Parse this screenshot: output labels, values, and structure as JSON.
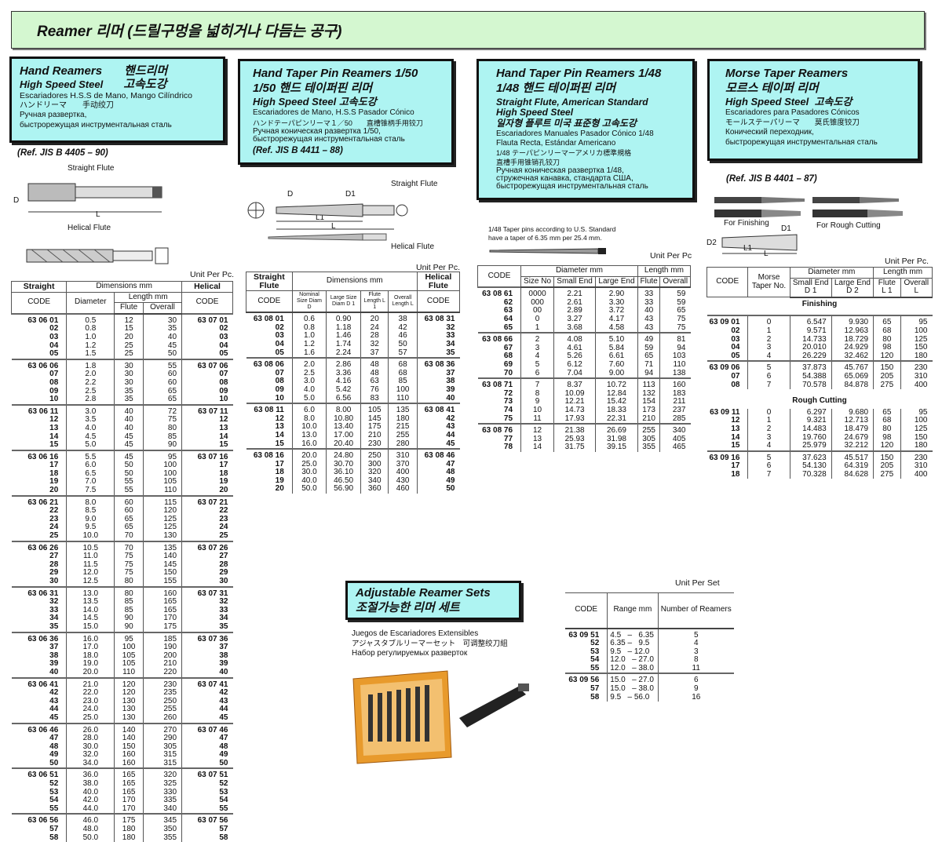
{
  "title": "Reamer  리머 (드릴구멍을 넓히거나 다듬는 공구)",
  "hand": {
    "title_en": "Hand Reamers",
    "title_kr": "핸드리머",
    "steel_en": "High Speed Steel",
    "steel_kr": "고속도강",
    "es": "Escariadores H.S.S de Mano, Mango Cilíndrico",
    "jp": "ハンドリーマ　　手动绞刀",
    "ru1": "Ручная развертка,",
    "ru2": "быстрорежущая инструментальная сталь",
    "ref": "(Ref. JIS B 4405 – 90)",
    "straight": "Straight Flute",
    "helical": "Helical Flute",
    "d": "D",
    "l": "L",
    "unit": "Unit Per Pc.",
    "headers": {
      "straight": "Straight",
      "dims": "Dimensions mm",
      "helical": "Helical",
      "code": "CODE",
      "diameter": "Diameter",
      "length": "Length mm",
      "flute": "Flute",
      "overall": "Overall",
      "code2": "CODE"
    },
    "rows": [
      [
        [
          "63 06 01",
          "0.5",
          "12",
          "30",
          "63 07 01"
        ],
        [
          "02",
          "0.8",
          "15",
          "35",
          "02"
        ],
        [
          "03",
          "1.0",
          "20",
          "40",
          "03"
        ],
        [
          "04",
          "1.2",
          "25",
          "45",
          "04"
        ],
        [
          "05",
          "1.5",
          "25",
          "50",
          "05"
        ]
      ],
      [
        [
          "63 06 06",
          "1.8",
          "30",
          "55",
          "63 07 06"
        ],
        [
          "07",
          "2.0",
          "30",
          "60",
          "07"
        ],
        [
          "08",
          "2.2",
          "30",
          "60",
          "08"
        ],
        [
          "09",
          "2.5",
          "35",
          "65",
          "09"
        ],
        [
          "10",
          "2.8",
          "35",
          "65",
          "10"
        ]
      ],
      [
        [
          "63 06 11",
          "3.0",
          "40",
          "72",
          "63 07 11"
        ],
        [
          "12",
          "3.5",
          "40",
          "75",
          "12"
        ],
        [
          "13",
          "4.0",
          "40",
          "80",
          "13"
        ],
        [
          "14",
          "4.5",
          "45",
          "85",
          "14"
        ],
        [
          "15",
          "5.0",
          "45",
          "90",
          "15"
        ]
      ],
      [
        [
          "63 06 16",
          "5.5",
          "45",
          "95",
          "63 07 16"
        ],
        [
          "17",
          "6.0",
          "50",
          "100",
          "17"
        ],
        [
          "18",
          "6.5",
          "50",
          "100",
          "18"
        ],
        [
          "19",
          "7.0",
          "55",
          "105",
          "19"
        ],
        [
          "20",
          "7.5",
          "55",
          "110",
          "20"
        ]
      ],
      [
        [
          "63 06 21",
          "8.0",
          "60",
          "115",
          "63 07 21"
        ],
        [
          "22",
          "8.5",
          "60",
          "120",
          "22"
        ],
        [
          "23",
          "9.0",
          "65",
          "125",
          "23"
        ],
        [
          "24",
          "9.5",
          "65",
          "125",
          "24"
        ],
        [
          "25",
          "10.0",
          "70",
          "130",
          "25"
        ]
      ],
      [
        [
          "63 06 26",
          "10.5",
          "70",
          "135",
          "63 07 26"
        ],
        [
          "27",
          "11.0",
          "75",
          "140",
          "27"
        ],
        [
          "28",
          "11.5",
          "75",
          "145",
          "28"
        ],
        [
          "29",
          "12.0",
          "75",
          "150",
          "29"
        ],
        [
          "30",
          "12.5",
          "80",
          "155",
          "30"
        ]
      ],
      [
        [
          "63 06 31",
          "13.0",
          "80",
          "160",
          "63 07 31"
        ],
        [
          "32",
          "13.5",
          "85",
          "165",
          "32"
        ],
        [
          "33",
          "14.0",
          "85",
          "165",
          "33"
        ],
        [
          "34",
          "14.5",
          "90",
          "170",
          "34"
        ],
        [
          "35",
          "15.0",
          "90",
          "175",
          "35"
        ]
      ],
      [
        [
          "63 06 36",
          "16.0",
          "95",
          "185",
          "63 07 36"
        ],
        [
          "37",
          "17.0",
          "100",
          "190",
          "37"
        ],
        [
          "38",
          "18.0",
          "105",
          "200",
          "38"
        ],
        [
          "39",
          "19.0",
          "105",
          "210",
          "39"
        ],
        [
          "40",
          "20.0",
          "110",
          "220",
          "40"
        ]
      ],
      [
        [
          "63 06 41",
          "21.0",
          "120",
          "230",
          "63 07 41"
        ],
        [
          "42",
          "22.0",
          "120",
          "235",
          "42"
        ],
        [
          "43",
          "23.0",
          "130",
          "250",
          "43"
        ],
        [
          "44",
          "24.0",
          "130",
          "255",
          "44"
        ],
        [
          "45",
          "25.0",
          "130",
          "260",
          "45"
        ]
      ],
      [
        [
          "63 06 46",
          "26.0",
          "140",
          "270",
          "63 07 46"
        ],
        [
          "47",
          "28.0",
          "140",
          "290",
          "47"
        ],
        [
          "48",
          "30.0",
          "150",
          "305",
          "48"
        ],
        [
          "49",
          "32.0",
          "160",
          "315",
          "49"
        ],
        [
          "50",
          "34.0",
          "160",
          "315",
          "50"
        ]
      ],
      [
        [
          "63 06 51",
          "36.0",
          "165",
          "320",
          "63 07 51"
        ],
        [
          "52",
          "38.0",
          "165",
          "325",
          "52"
        ],
        [
          "53",
          "40.0",
          "165",
          "330",
          "53"
        ],
        [
          "54",
          "42.0",
          "170",
          "335",
          "54"
        ],
        [
          "55",
          "44.0",
          "170",
          "340",
          "55"
        ]
      ],
      [
        [
          "63 06 56",
          "46.0",
          "175",
          "345",
          "63 07 56"
        ],
        [
          "57",
          "48.0",
          "180",
          "350",
          "57"
        ],
        [
          "58",
          "50.0",
          "180",
          "355",
          "58"
        ]
      ]
    ]
  },
  "taper50": {
    "title_en": "Hand Taper Pin Reamers 1/50",
    "title_kr": "1/50 핸드 테이퍼핀 리머",
    "steel_en": "High Speed Steel",
    "steel_kr": "고속도강",
    "es": "Escariadores de Mano, H.S.S Pasador Cónico",
    "jp": "ハンドテーパピンリーマ１／50　　直槽锥柄手用铰刀",
    "ru1": "Ручная коническая развертка 1/50,",
    "ru2": "быстрорежущая инструментальная сталь",
    "ref": "(Ref. JIS B 4411 – 88)",
    "straight": "Straight Flute",
    "helical": "Helical Flute",
    "d": "D",
    "d1": "D1",
    "l1": "L1",
    "l": "L",
    "unit": "Unit Per Pc.",
    "headers": {
      "straight": "Straight Flute",
      "dims": "Dimensions mm",
      "helical": "Helical Flute",
      "code": "CODE",
      "nominal": "Nominal Size Diam D",
      "large": "Large Size Diam D 1",
      "flute": "Flute Length L 1",
      "overall": "Overall Length L",
      "code2": "CODE"
    },
    "rows": [
      [
        [
          "63 08 01",
          "0.6",
          "0.90",
          "20",
          "38",
          "63 08 31"
        ],
        [
          "02",
          "0.8",
          "1.18",
          "24",
          "42",
          "32"
        ],
        [
          "03",
          "1.0",
          "1.46",
          "28",
          "46",
          "33"
        ],
        [
          "04",
          "1.2",
          "1.74",
          "32",
          "50",
          "34"
        ],
        [
          "05",
          "1.6",
          "2.24",
          "37",
          "57",
          "35"
        ]
      ],
      [
        [
          "63 08 06",
          "2.0",
          "2.86",
          "48",
          "68",
          "63 08 36"
        ],
        [
          "07",
          "2.5",
          "3.36",
          "48",
          "68",
          "37"
        ],
        [
          "08",
          "3.0",
          "4.16",
          "63",
          "85",
          "38"
        ],
        [
          "09",
          "4.0",
          "5.42",
          "76",
          "100",
          "39"
        ],
        [
          "10",
          "5.0",
          "6.56",
          "83",
          "110",
          "40"
        ]
      ],
      [
        [
          "63 08 11",
          "6.0",
          "8.00",
          "105",
          "135",
          "63 08 41"
        ],
        [
          "12",
          "8.0",
          "10.80",
          "145",
          "180",
          "42"
        ],
        [
          "13",
          "10.0",
          "13.40",
          "175",
          "215",
          "43"
        ],
        [
          "14",
          "13.0",
          "17.00",
          "210",
          "255",
          "44"
        ],
        [
          "15",
          "16.0",
          "20.40",
          "230",
          "280",
          "45"
        ]
      ],
      [
        [
          "63 08 16",
          "20.0",
          "24.80",
          "250",
          "310",
          "63 08 46"
        ],
        [
          "17",
          "25.0",
          "30.70",
          "300",
          "370",
          "47"
        ],
        [
          "18",
          "30.0",
          "36.10",
          "320",
          "400",
          "48"
        ],
        [
          "19",
          "40.0",
          "46.50",
          "340",
          "430",
          "49"
        ],
        [
          "20",
          "50.0",
          "56.90",
          "360",
          "460",
          "50"
        ]
      ]
    ]
  },
  "taper48": {
    "title_en": "Hand Taper Pin Reamers 1/48",
    "title_kr": "1/48 핸드 테이퍼핀 리머",
    "sub1": "Straight Flute, American Standard",
    "sub2": "High Speed Steel",
    "sub_kr": "일자형 플루트 미국 표준형 고속도강",
    "es1": "Escariadores Manuales Pasador Cónico 1/48",
    "es2": "Flauta Recta, Estándar Americano",
    "jp1": "1/48 テーパピンリーマーアメリカ標準規格",
    "jp2": "直槽手用锥销孔铰刀",
    "ru1": "Ручная коническая развертка 1/48,",
    "ru2": "стружечная канавка, стандарта США,",
    "ru3": "быстрорежущая инструментальная сталь",
    "note1": "1/48 Taper pins according to U.S. Standard",
    "note2": "have a taper of 6.35 mm per 25.4 mm.",
    "unit": "Unit Per Pc",
    "headers": {
      "code": "CODE",
      "diameter": "Diameter mm",
      "length": "Length mm",
      "size": "Size No",
      "small": "Small End",
      "large": "Large End",
      "flute": "Flute",
      "overall": "Overall"
    },
    "rows": [
      [
        [
          "63 08 61",
          "0000",
          "2.21",
          "2.90",
          "33",
          "59"
        ],
        [
          "62",
          "000",
          "2.61",
          "3.30",
          "33",
          "59"
        ],
        [
          "63",
          "00",
          "2.89",
          "3.72",
          "40",
          "65"
        ],
        [
          "64",
          "0",
          "3.27",
          "4.17",
          "43",
          "75"
        ],
        [
          "65",
          "1",
          "3.68",
          "4.58",
          "43",
          "75"
        ]
      ],
      [
        [
          "63 08 66",
          "2",
          "4.08",
          "5.10",
          "49",
          "81"
        ],
        [
          "67",
          "3",
          "4.61",
          "5.84",
          "59",
          "94"
        ],
        [
          "68",
          "4",
          "5.26",
          "6.61",
          "65",
          "103"
        ],
        [
          "69",
          "5",
          "6.12",
          "7.60",
          "71",
          "110"
        ],
        [
          "70",
          "6",
          "7.04",
          "9.00",
          "94",
          "138"
        ]
      ],
      [
        [
          "63 08 71",
          "7",
          "8.37",
          "10.72",
          "113",
          "160"
        ],
        [
          "72",
          "8",
          "10.09",
          "12.84",
          "132",
          "183"
        ],
        [
          "73",
          "9",
          "12.21",
          "15.42",
          "154",
          "211"
        ],
        [
          "74",
          "10",
          "14.73",
          "18.33",
          "173",
          "237"
        ],
        [
          "75",
          "11",
          "17.93",
          "22.31",
          "210",
          "285"
        ]
      ],
      [
        [
          "63 08 76",
          "12",
          "21.38",
          "26.69",
          "255",
          "340"
        ],
        [
          "77",
          "13",
          "25.93",
          "31.98",
          "305",
          "405"
        ],
        [
          "78",
          "14",
          "31.75",
          "39.15",
          "355",
          "465"
        ]
      ]
    ]
  },
  "morse": {
    "title_en": "Morse Taper Reamers",
    "title_kr": "모르스 테이퍼 리머",
    "steel_en": "High Speed Steel",
    "steel_kr": "고속도강",
    "es": "Escariadores para Pasadores Cónicos",
    "jp": "モールステーパリーマ　　莫氏锥度铰刀",
    "ru1": "Конический переходник,",
    "ru2": "быстрорежущая инструментальная сталь",
    "ref": "(Ref. JIS B 4401 – 87)",
    "finishing_lbl": "For Finishing",
    "rough_lbl": "For Rough Cutting",
    "d1": "D1",
    "d2": "D2",
    "l1": "L1",
    "l": "L",
    "unit": "Unit Per Pc.",
    "headers": {
      "code": "CODE",
      "morse": "Morse Taper No.",
      "diameter": "Diameter mm",
      "length": "Length mm",
      "small": "Small End D 1",
      "large": "Large End D 2",
      "flute": "Flute L 1",
      "overall": "Overall L"
    },
    "finishing": "Finishing",
    "rough": "Rough Cutting",
    "finishing_rows": [
      [
        [
          "63 09 01",
          "0",
          "6.547",
          "9.930",
          "65",
          "95"
        ],
        [
          "02",
          "1",
          "9.571",
          "12.963",
          "68",
          "100"
        ],
        [
          "03",
          "2",
          "14.733",
          "18.729",
          "80",
          "125"
        ],
        [
          "04",
          "3",
          "20.010",
          "24.929",
          "98",
          "150"
        ],
        [
          "05",
          "4",
          "26.229",
          "32.462",
          "120",
          "180"
        ]
      ],
      [
        [
          "63 09 06",
          "5",
          "37.873",
          "45.767",
          "150",
          "230"
        ],
        [
          "07",
          "6",
          "54.388",
          "65.069",
          "205",
          "310"
        ],
        [
          "08",
          "7",
          "70.578",
          "84.878",
          "275",
          "400"
        ]
      ]
    ],
    "rough_rows": [
      [
        [
          "63 09 11",
          "0",
          "6.297",
          "9.680",
          "65",
          "95"
        ],
        [
          "12",
          "1",
          "9.321",
          "12.713",
          "68",
          "100"
        ],
        [
          "13",
          "2",
          "14.483",
          "18.479",
          "80",
          "125"
        ],
        [
          "14",
          "3",
          "19.760",
          "24.679",
          "98",
          "150"
        ],
        [
          "15",
          "4",
          "25.979",
          "32.212",
          "120",
          "180"
        ]
      ],
      [
        [
          "63 09 16",
          "5",
          "37.623",
          "45.517",
          "150",
          "230"
        ],
        [
          "17",
          "6",
          "54.130",
          "64.319",
          "205",
          "310"
        ],
        [
          "18",
          "7",
          "70.328",
          "84.628",
          "275",
          "400"
        ]
      ]
    ]
  },
  "adjustable": {
    "title_en": "Adjustable Reamer Sets",
    "title_kr": "조절가능한 리머 세트",
    "es": "Juegos de Escariadores Extensibles",
    "jp": "アジャスタブルリーマーセット　可调整绞刀組",
    "ru": "Набор регулируемых разверток",
    "unit": "Unit Per Set",
    "headers": {
      "code": "CODE",
      "range": "Range mm",
      "number": "Number of Reamers"
    },
    "rows": [
      [
        [
          "63 09 51",
          "4.5   –   6.35",
          "5"
        ],
        [
          "52",
          "6.35 –   9.5",
          "4"
        ],
        [
          "53",
          "9.5   – 12.0",
          "3"
        ],
        [
          "54",
          "12.0   – 27.0",
          "8"
        ],
        [
          "55",
          "12.0   – 38.0",
          "11"
        ]
      ],
      [
        [
          "63 09 56",
          "15.0   – 27.0",
          "6"
        ],
        [
          "57",
          "15.0   – 38.0",
          "9"
        ],
        [
          "58",
          "9.5   – 56.0",
          "16"
        ]
      ]
    ]
  },
  "colors": {
    "banner": "#d4f7d0",
    "box": "#aef4f2",
    "box_case": "#e89a2c"
  }
}
